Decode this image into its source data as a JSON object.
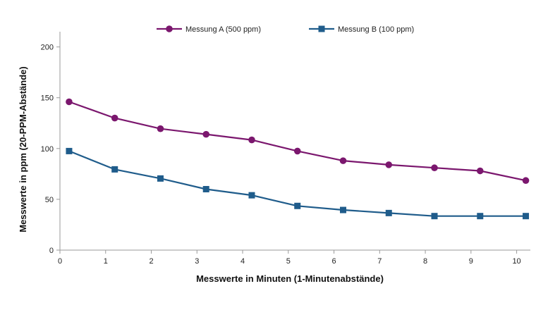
{
  "chart_data": {
    "type": "line",
    "xlabel": "Messwerte in Minuten (1-Minutenabstände)",
    "ylabel": "Messwerte in ppm (20-PPM-Abstände)",
    "xlim": [
      0,
      10.3
    ],
    "ylim": [
      0,
      215
    ],
    "x_ticks": [
      0,
      1,
      2,
      3,
      4,
      5,
      6,
      7,
      8,
      9,
      10
    ],
    "y_ticks": [
      0,
      50,
      100,
      150,
      200
    ],
    "x": [
      0.2,
      1.2,
      2.2,
      3.2,
      4.2,
      5.2,
      6.2,
      7.2,
      8.2,
      9.2,
      10.2
    ],
    "grid": false,
    "legend_position": "top",
    "series": [
      {
        "name": "Messung A (500 ppm)",
        "color": "#7B176E",
        "marker": "circle",
        "values": [
          146,
          130,
          119.5,
          114,
          108.5,
          97.5,
          88,
          84,
          81,
          78,
          68.5
        ]
      },
      {
        "name": "Messung B (100 ppm)",
        "color": "#1F5C8B",
        "marker": "square",
        "values": [
          97.5,
          79.5,
          70.5,
          60,
          54,
          43.5,
          39.5,
          36.5,
          33.5,
          33.5,
          33.5
        ]
      }
    ]
  }
}
